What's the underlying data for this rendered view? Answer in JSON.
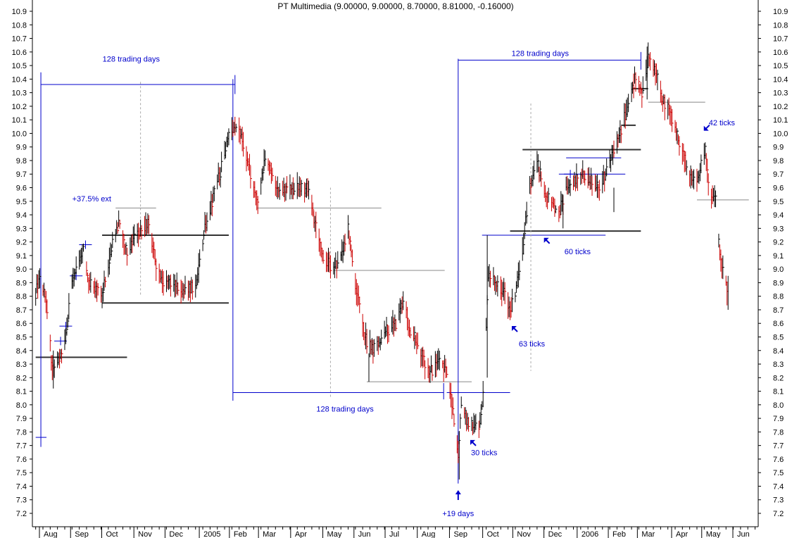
{
  "chart_data": {
    "type": "line",
    "chart_style": "hlc-bars",
    "title": "PT Multimedia (9.00000, 9.00000, 8.70000, 8.81000, -0.16000)",
    "xlabel": "",
    "ylabel": "",
    "x_range": [
      "2004-07-26",
      "2006-06-30"
    ],
    "ylim": [
      7.12,
      10.95
    ],
    "y_ticks": [
      7.2,
      7.3,
      7.4,
      7.5,
      7.6,
      7.7,
      7.8,
      7.9,
      8.0,
      8.1,
      8.2,
      8.3,
      8.4,
      8.5,
      8.6,
      8.7,
      8.8,
      8.9,
      9.0,
      9.1,
      9.2,
      9.3,
      9.4,
      9.5,
      9.6,
      9.7,
      9.8,
      9.9,
      10.0,
      10.1,
      10.2,
      10.3,
      10.4,
      10.5,
      10.6,
      10.7,
      10.8,
      10.9
    ],
    "y_axes": [
      "left",
      "right"
    ],
    "grid": false,
    "colors": {
      "up": "#000000",
      "down": "#cc0000",
      "annotation": "#0000cc",
      "level": "#333333",
      "level_light": "#888888"
    },
    "month_ticks": [
      {
        "date": "2004-08-02",
        "label": "Aug"
      },
      {
        "date": "2004-09-01",
        "label": "Sep"
      },
      {
        "date": "2004-10-01",
        "label": "Oct"
      },
      {
        "date": "2004-11-01",
        "label": "Nov"
      },
      {
        "date": "2004-12-01",
        "label": "Dec"
      },
      {
        "date": "2005-01-03",
        "label": "2005"
      },
      {
        "date": "2005-02-01",
        "label": "Feb"
      },
      {
        "date": "2005-03-01",
        "label": "Mar"
      },
      {
        "date": "2005-04-01",
        "label": "Apr"
      },
      {
        "date": "2005-05-02",
        "label": "May"
      },
      {
        "date": "2005-06-01",
        "label": "Jun"
      },
      {
        "date": "2005-07-01",
        "label": "Jul"
      },
      {
        "date": "2005-08-01",
        "label": "Aug"
      },
      {
        "date": "2005-09-01",
        "label": "Sep"
      },
      {
        "date": "2005-10-03",
        "label": "Oct"
      },
      {
        "date": "2005-11-01",
        "label": "Nov"
      },
      {
        "date": "2005-12-01",
        "label": "Dec"
      },
      {
        "date": "2006-01-02",
        "label": "2006"
      },
      {
        "date": "2006-02-01",
        "label": "Feb"
      },
      {
        "date": "2006-03-01",
        "label": "Mar"
      },
      {
        "date": "2006-04-03",
        "label": "Apr"
      },
      {
        "date": "2006-05-02",
        "label": "May"
      },
      {
        "date": "2006-06-01",
        "label": "Jun"
      }
    ],
    "price_path": [
      [
        "2004-07-26",
        8.82
      ],
      [
        "2004-07-30",
        8.98
      ],
      [
        "2004-08-06",
        8.7
      ],
      [
        "2004-08-11",
        8.25
      ],
      [
        "2004-08-16",
        8.3
      ],
      [
        "2004-08-23",
        8.45
      ],
      [
        "2004-08-30",
        8.9
      ],
      [
        "2004-09-10",
        9.15
      ],
      [
        "2004-09-15",
        8.9
      ],
      [
        "2004-09-28",
        8.8
      ],
      [
        "2004-10-08",
        9.2
      ],
      [
        "2004-10-14",
        9.35
      ],
      [
        "2004-10-22",
        9.1
      ],
      [
        "2004-10-29",
        9.25
      ],
      [
        "2004-11-05",
        9.3
      ],
      [
        "2004-11-12",
        9.35
      ],
      [
        "2004-11-19",
        9.0
      ],
      [
        "2004-11-26",
        8.9
      ],
      [
        "2004-12-06",
        8.88
      ],
      [
        "2004-12-17",
        8.85
      ],
      [
        "2004-12-28",
        8.88
      ],
      [
        "2005-01-05",
        9.3
      ],
      [
        "2005-01-12",
        9.5
      ],
      [
        "2005-01-21",
        9.75
      ],
      [
        "2005-01-28",
        10.0
      ],
      [
        "2005-02-01",
        10.05
      ],
      [
        "2005-02-09",
        10.0
      ],
      [
        "2005-02-18",
        9.7
      ],
      [
        "2005-02-25",
        9.5
      ],
      [
        "2005-03-04",
        9.8
      ],
      [
        "2005-03-11",
        9.7
      ],
      [
        "2005-03-18",
        9.55
      ],
      [
        "2005-03-28",
        9.6
      ],
      [
        "2005-04-08",
        9.6
      ],
      [
        "2005-04-15",
        9.6
      ],
      [
        "2005-04-22",
        9.3
      ],
      [
        "2005-04-29",
        9.1
      ],
      [
        "2005-05-09",
        9.0
      ],
      [
        "2005-05-16",
        9.1
      ],
      [
        "2005-05-23",
        9.3
      ],
      [
        "2005-05-30",
        8.9
      ],
      [
        "2005-06-08",
        8.5
      ],
      [
        "2005-06-15",
        8.4
      ],
      [
        "2005-06-22",
        8.45
      ],
      [
        "2005-06-29",
        8.55
      ],
      [
        "2005-07-08",
        8.6
      ],
      [
        "2005-07-15",
        8.75
      ],
      [
        "2005-07-22",
        8.55
      ],
      [
        "2005-07-29",
        8.45
      ],
      [
        "2005-08-05",
        8.3
      ],
      [
        "2005-08-12",
        8.25
      ],
      [
        "2005-08-19",
        8.32
      ],
      [
        "2005-08-26",
        8.25
      ],
      [
        "2005-09-01",
        7.95
      ],
      [
        "2005-09-06",
        7.65
      ],
      [
        "2005-09-09",
        8.0
      ],
      [
        "2005-09-14",
        7.9
      ],
      [
        "2005-09-20",
        7.85
      ],
      [
        "2005-09-26",
        7.85
      ],
      [
        "2005-09-30",
        8.05
      ],
      [
        "2005-10-05",
        8.95
      ],
      [
        "2005-10-12",
        8.9
      ],
      [
        "2005-10-19",
        8.85
      ],
      [
        "2005-10-26",
        8.7
      ],
      [
        "2005-10-31",
        8.8
      ],
      [
        "2005-11-07",
        9.15
      ],
      [
        "2005-11-14",
        9.6
      ],
      [
        "2005-11-21",
        9.8
      ],
      [
        "2005-11-28",
        9.55
      ],
      [
        "2005-12-05",
        9.5
      ],
      [
        "2005-12-12",
        9.4
      ],
      [
        "2005-12-19",
        9.6
      ],
      [
        "2005-12-28",
        9.65
      ],
      [
        "2006-01-05",
        9.7
      ],
      [
        "2006-01-12",
        9.65
      ],
      [
        "2006-01-19",
        9.6
      ],
      [
        "2006-01-26",
        9.7
      ],
      [
        "2006-02-02",
        9.85
      ],
      [
        "2006-02-09",
        10.0
      ],
      [
        "2006-02-16",
        10.2
      ],
      [
        "2006-02-23",
        10.4
      ],
      [
        "2006-03-02",
        10.3
      ],
      [
        "2006-03-08",
        10.55
      ],
      [
        "2006-03-15",
        10.45
      ],
      [
        "2006-03-22",
        10.25
      ],
      [
        "2006-03-29",
        10.15
      ],
      [
        "2006-04-05",
        10.0
      ],
      [
        "2006-04-12",
        9.8
      ],
      [
        "2006-04-19",
        9.65
      ],
      [
        "2006-04-26",
        9.7
      ],
      [
        "2006-05-02",
        9.9
      ],
      [
        "2006-05-05",
        9.6
      ],
      [
        "2006-05-10",
        9.55
      ],
      [
        "2006-05-12",
        9.5
      ]
    ],
    "gap_segment": [
      [
        "2006-05-15",
        9.2
      ],
      [
        "2006-05-17",
        9.05
      ],
      [
        "2006-05-19",
        8.98
      ],
      [
        "2006-05-22",
        8.9
      ],
      [
        "2006-05-23",
        8.81
      ]
    ],
    "spikes": [
      {
        "date": "2004-08-12",
        "high": 8.4,
        "low": 8.12
      },
      {
        "date": "2005-06-12",
        "high": 8.38,
        "low": 8.17
      },
      {
        "date": "2005-09-07",
        "high": 7.8,
        "low": 7.45
      },
      {
        "date": "2005-10-04",
        "high": 9.25,
        "low": 8.2
      },
      {
        "date": "2005-12-16",
        "high": 9.55,
        "low": 9.3
      },
      {
        "date": "2006-02-03",
        "high": 9.6,
        "low": 9.42
      },
      {
        "date": "2006-03-07",
        "high": 10.64,
        "low": 10.25
      },
      {
        "date": "2006-05-24",
        "high": 8.95,
        "low": 8.7
      }
    ],
    "horizontal_levels": [
      {
        "name": "level-8.35",
        "x1": "2004-07-26",
        "x2": "2004-10-22",
        "y": 8.35,
        "style": "thick"
      },
      {
        "name": "level-8.75",
        "x1": "2004-09-28",
        "x2": "2005-01-28",
        "y": 8.75,
        "style": "thick"
      },
      {
        "name": "level-9.25",
        "x1": "2004-09-28",
        "x2": "2005-01-28",
        "y": 9.25,
        "style": "thick"
      },
      {
        "name": "level-9.45-2004",
        "x1": "2004-10-11",
        "x2": "2004-11-19",
        "y": 9.45,
        "style": "thin"
      },
      {
        "name": "level-9.45-2005",
        "x1": "2005-02-24",
        "x2": "2005-06-24",
        "y": 9.45,
        "style": "thin"
      },
      {
        "name": "level-8.99",
        "x1": "2005-05-09",
        "x2": "2005-08-24",
        "y": 8.99,
        "style": "thin"
      },
      {
        "name": "level-8.17",
        "x1": "2005-06-10",
        "x2": "2005-09-19",
        "y": 8.17,
        "style": "thin"
      },
      {
        "name": "level-9.25-2005",
        "x1": "2005-09-29",
        "x2": "2006-01-26",
        "y": 9.25,
        "style": "blue"
      },
      {
        "name": "level-9.28",
        "x1": "2005-10-26",
        "x2": "2006-03-01",
        "y": 9.28,
        "style": "thick"
      },
      {
        "name": "level-9.88",
        "x1": "2005-11-07",
        "x2": "2006-03-01",
        "y": 9.88,
        "style": "thick"
      },
      {
        "name": "level-9.82",
        "x1": "2005-12-19",
        "x2": "2006-02-10",
        "y": 9.82,
        "style": "blue"
      },
      {
        "name": "level-9.70",
        "x1": "2005-12-12",
        "x2": "2006-02-14",
        "y": 9.7,
        "style": "blue"
      },
      {
        "name": "level-10.06",
        "x1": "2006-02-10",
        "x2": "2006-02-24",
        "y": 10.06,
        "style": "thick"
      },
      {
        "name": "level-10.33",
        "x1": "2006-02-21",
        "x2": "2006-03-08",
        "y": 10.33,
        "style": "thick"
      },
      {
        "name": "level-10.23",
        "x1": "2006-03-08",
        "x2": "2006-05-02",
        "y": 10.23,
        "style": "thin"
      },
      {
        "name": "level-9.51",
        "x1": "2006-04-24",
        "x2": "2006-06-13",
        "y": 9.51,
        "style": "thin"
      }
    ],
    "cycle_markers": [
      {
        "date": "2004-07-31",
        "y_top": 10.45,
        "y_bottom": 7.69
      },
      {
        "date": "2005-02-01",
        "y_top": 10.4,
        "y_bottom": 8.03
      },
      {
        "date": "2005-09-06",
        "y_top": 10.55,
        "y_bottom": 7.42
      }
    ],
    "brackets": [
      {
        "x1": "2004-07-31",
        "x2": "2005-02-03",
        "y": 10.36,
        "end_ticks": [
          {
            "date": "2005-02-03",
            "y1": 10.29,
            "y2": 10.43
          }
        ]
      },
      {
        "x1": "2005-02-01",
        "x2": "2005-08-23",
        "y": 8.09,
        "end_ticks": [
          {
            "date": "2005-08-23",
            "y1": 8.04,
            "y2": 8.16
          }
        ]
      },
      {
        "x1": "2005-09-06",
        "x2": "2006-03-01",
        "y": 10.54,
        "end_ticks": [
          {
            "date": "2006-03-01",
            "y1": 10.47,
            "y2": 10.6
          }
        ]
      },
      {
        "x1": "2005-08-26",
        "x2": "2005-10-26",
        "y": 8.09,
        "end_ticks": []
      }
    ],
    "left_bracket": {
      "x1": "2004-07-26",
      "x2": "2004-07-31",
      "y": 7.76
    },
    "step_ticks": [
      {
        "date": "2004-08-19",
        "y": 8.47
      },
      {
        "date": "2004-08-24",
        "y": 8.58
      },
      {
        "date": "2004-09-03",
        "y": 8.95
      },
      {
        "date": "2004-09-12",
        "y": 9.18
      },
      {
        "date": "2005-12-23",
        "y": 9.7
      }
    ],
    "dashed_verticals": [
      {
        "date": "2004-11-04",
        "y1": 9.45,
        "y2": 8.8
      },
      {
        "date": "2004-11-04",
        "y1": 10.38,
        "y2": 9.45
      },
      {
        "date": "2005-05-06",
        "y1": 9.6,
        "y2": 8.05
      },
      {
        "date": "2005-11-15",
        "y1": 10.22,
        "y2": 8.25
      }
    ],
    "annotations": [
      {
        "name": "label-128-trading-days-1",
        "text": "128 trading days",
        "date": "2004-10-26",
        "y": 10.55
      },
      {
        "name": "label-37-5-ext",
        "text": "+37.5% ext",
        "date": "2004-09-18",
        "y": 9.52
      },
      {
        "name": "label-128-trading-days-2",
        "text": "128 trading days",
        "date": "2005-05-20",
        "y": 7.97
      },
      {
        "name": "label-128-trading-days-3",
        "text": "128 trading days",
        "date": "2005-11-24",
        "y": 10.59
      },
      {
        "name": "label-19-days",
        "text": "+19 days",
        "date": "2005-09-06",
        "y": 7.2
      },
      {
        "name": "label-30-ticks",
        "text": "30 ticks",
        "date": "2005-10-01",
        "y": 7.65
      },
      {
        "name": "label-63-ticks",
        "text": "63 ticks",
        "date": "2005-11-16",
        "y": 8.45
      },
      {
        "name": "label-60-ticks",
        "text": "60 ticks",
        "date": "2005-12-30",
        "y": 9.13
      },
      {
        "name": "label-42-ticks",
        "text": "42 ticks",
        "date": "2006-05-18",
        "y": 10.08
      }
    ],
    "arrows": [
      {
        "name": "arrow-up-19-days",
        "date": "2005-09-06",
        "y": 7.34,
        "dir": "up"
      },
      {
        "name": "arrow-30-ticks",
        "date": "2005-09-19",
        "y": 7.73,
        "dir": "up-left"
      },
      {
        "name": "arrow-63-ticks",
        "date": "2005-10-29",
        "y": 8.57,
        "dir": "up-left"
      },
      {
        "name": "arrow-60-ticks",
        "date": "2005-11-29",
        "y": 9.22,
        "dir": "up-left"
      },
      {
        "name": "arrow-42-ticks",
        "date": "2006-05-02",
        "y": 10.03,
        "dir": "down-left"
      }
    ]
  }
}
